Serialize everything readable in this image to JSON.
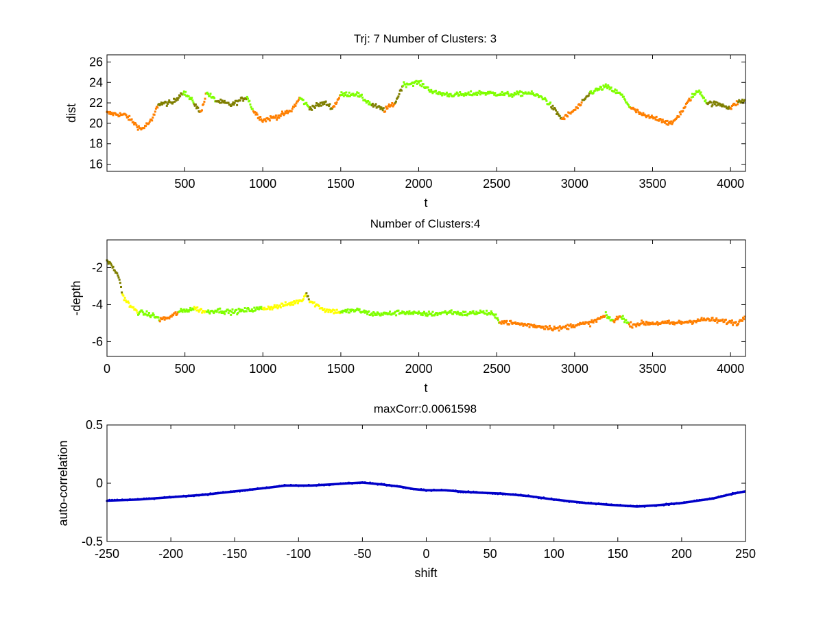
{
  "chart_data": [
    {
      "type": "scatter",
      "title": "Trj: 7 Number of Clusters: 3",
      "xlabel": "t",
      "ylabel": "dist",
      "xlim": [
        1,
        4096
      ],
      "ylim": [
        15.3,
        26.7
      ],
      "xticks": [
        500,
        1000,
        1500,
        2000,
        2500,
        3000,
        3500,
        4000
      ],
      "yticks": [
        16,
        18,
        20,
        22,
        24,
        26
      ],
      "grid": false,
      "cluster_colors": [
        "#ff7f00",
        "#7f7f00",
        "#7fff00"
      ],
      "trace": [
        [
          1,
          21.0,
          0
        ],
        [
          120,
          20.8,
          0
        ],
        [
          220,
          19.4,
          0
        ],
        [
          290,
          20.3,
          0
        ],
        [
          330,
          21.9,
          1
        ],
        [
          420,
          22.0,
          1
        ],
        [
          490,
          23.1,
          2
        ],
        [
          560,
          22.0,
          1
        ],
        [
          600,
          21.0,
          0
        ],
        [
          640,
          23.0,
          2
        ],
        [
          700,
          22.2,
          1
        ],
        [
          800,
          21.8,
          1
        ],
        [
          900,
          22.6,
          2
        ],
        [
          940,
          21.2,
          0
        ],
        [
          1000,
          20.3,
          0
        ],
        [
          1100,
          20.7,
          0
        ],
        [
          1180,
          21.2,
          0
        ],
        [
          1240,
          22.5,
          2
        ],
        [
          1300,
          21.5,
          1
        ],
        [
          1400,
          22.0,
          1
        ],
        [
          1450,
          21.5,
          0
        ],
        [
          1500,
          22.8,
          2
        ],
        [
          1600,
          22.9,
          2
        ],
        [
          1700,
          21.8,
          1
        ],
        [
          1780,
          21.3,
          0
        ],
        [
          1850,
          22.0,
          1
        ],
        [
          1900,
          23.8,
          2
        ],
        [
          2000,
          24.0,
          2
        ],
        [
          2100,
          23.0,
          2
        ],
        [
          2200,
          22.8,
          2
        ],
        [
          2300,
          22.8,
          2
        ],
        [
          2400,
          23.0,
          2
        ],
        [
          2500,
          22.9,
          2
        ],
        [
          2600,
          22.8,
          2
        ],
        [
          2700,
          23.0,
          2
        ],
        [
          2800,
          22.5,
          2
        ],
        [
          2850,
          21.7,
          1
        ],
        [
          2920,
          20.4,
          0
        ],
        [
          3000,
          21.3,
          0
        ],
        [
          3050,
          22.0,
          1
        ],
        [
          3100,
          23.0,
          2
        ],
        [
          3200,
          23.6,
          2
        ],
        [
          3300,
          22.8,
          2
        ],
        [
          3360,
          21.5,
          0
        ],
        [
          3450,
          20.7,
          0
        ],
        [
          3550,
          20.4,
          0
        ],
        [
          3620,
          19.9,
          0
        ],
        [
          3700,
          21.4,
          0
        ],
        [
          3750,
          22.6,
          2
        ],
        [
          3800,
          23.2,
          2
        ],
        [
          3850,
          22.0,
          1
        ],
        [
          3950,
          21.8,
          1
        ],
        [
          4000,
          21.5,
          0
        ],
        [
          4050,
          22.1,
          1
        ],
        [
          4096,
          22.2,
          1
        ]
      ]
    },
    {
      "type": "scatter",
      "title": "Number of Clusters:4",
      "xlabel": "t",
      "ylabel": "-depth",
      "xlim": [
        0,
        4096
      ],
      "ylim": [
        -6.8,
        -0.5
      ],
      "xticks": [
        0,
        500,
        1000,
        1500,
        2000,
        2500,
        3000,
        3500,
        4000
      ],
      "yticks": [
        -6,
        -4,
        -2
      ],
      "grid": false,
      "cluster_colors": [
        "#7f7f00",
        "#ffff00",
        "#7fff00",
        "#ff7f00"
      ],
      "trace": [
        [
          0,
          -1.6,
          0
        ],
        [
          40,
          -2.0,
          0
        ],
        [
          80,
          -2.6,
          0
        ],
        [
          100,
          -3.5,
          1
        ],
        [
          150,
          -4.1,
          1
        ],
        [
          200,
          -4.4,
          2
        ],
        [
          300,
          -4.6,
          2
        ],
        [
          340,
          -4.8,
          3
        ],
        [
          400,
          -4.7,
          3
        ],
        [
          460,
          -4.4,
          2
        ],
        [
          560,
          -4.2,
          1
        ],
        [
          640,
          -4.4,
          2
        ],
        [
          700,
          -4.3,
          2
        ],
        [
          800,
          -4.4,
          2
        ],
        [
          900,
          -4.3,
          2
        ],
        [
          1000,
          -4.2,
          1
        ],
        [
          1100,
          -4.1,
          1
        ],
        [
          1200,
          -3.9,
          1
        ],
        [
          1260,
          -3.7,
          1
        ],
        [
          1280,
          -3.3,
          0
        ],
        [
          1300,
          -3.8,
          1
        ],
        [
          1400,
          -4.3,
          1
        ],
        [
          1500,
          -4.4,
          2
        ],
        [
          1600,
          -4.3,
          2
        ],
        [
          1700,
          -4.5,
          2
        ],
        [
          1800,
          -4.5,
          2
        ],
        [
          1900,
          -4.4,
          2
        ],
        [
          2000,
          -4.5,
          2
        ],
        [
          2100,
          -4.5,
          2
        ],
        [
          2200,
          -4.4,
          2
        ],
        [
          2300,
          -4.5,
          2
        ],
        [
          2400,
          -4.4,
          2
        ],
        [
          2470,
          -4.5,
          2
        ],
        [
          2520,
          -4.9,
          3
        ],
        [
          2600,
          -5.0,
          3
        ],
        [
          2700,
          -5.1,
          3
        ],
        [
          2800,
          -5.2,
          3
        ],
        [
          2900,
          -5.3,
          3
        ],
        [
          3000,
          -5.1,
          3
        ],
        [
          3100,
          -5.0,
          3
        ],
        [
          3200,
          -4.6,
          2
        ],
        [
          3250,
          -4.9,
          3
        ],
        [
          3300,
          -4.6,
          2
        ],
        [
          3350,
          -5.1,
          3
        ],
        [
          3450,
          -5.0,
          3
        ],
        [
          3550,
          -5.0,
          3
        ],
        [
          3650,
          -5.0,
          3
        ],
        [
          3750,
          -4.9,
          3
        ],
        [
          3850,
          -4.8,
          3
        ],
        [
          3950,
          -4.9,
          3
        ],
        [
          4050,
          -5.0,
          3
        ],
        [
          4096,
          -4.6,
          2
        ]
      ]
    },
    {
      "type": "line",
      "title": "maxCorr:0.0061598",
      "xlabel": "shift",
      "ylabel": "auto-correlation",
      "xlim": [
        -250,
        250
      ],
      "ylim": [
        -0.5,
        0.5
      ],
      "xticks": [
        -250,
        -200,
        -150,
        -100,
        -50,
        0,
        50,
        100,
        150,
        200,
        250
      ],
      "yticks": [
        -0.5,
        0,
        0.5
      ],
      "grid": false,
      "series": [
        {
          "name": "auto-correlation",
          "color": "#0000c8",
          "x": [
            -250,
            -225,
            -200,
            -175,
            -150,
            -125,
            -110,
            -90,
            -75,
            -60,
            -50,
            -35,
            -20,
            -10,
            0,
            15,
            25,
            40,
            60,
            80,
            100,
            125,
            150,
            165,
            180,
            200,
            225,
            240,
            250
          ],
          "y": [
            -0.15,
            -0.14,
            -0.12,
            -0.1,
            -0.07,
            -0.04,
            -0.02,
            -0.02,
            -0.01,
            0.0,
            0.006,
            -0.01,
            -0.03,
            -0.05,
            -0.06,
            -0.06,
            -0.07,
            -0.08,
            -0.09,
            -0.11,
            -0.14,
            -0.17,
            -0.19,
            -0.2,
            -0.19,
            -0.17,
            -0.13,
            -0.09,
            -0.07
          ]
        }
      ]
    }
  ]
}
